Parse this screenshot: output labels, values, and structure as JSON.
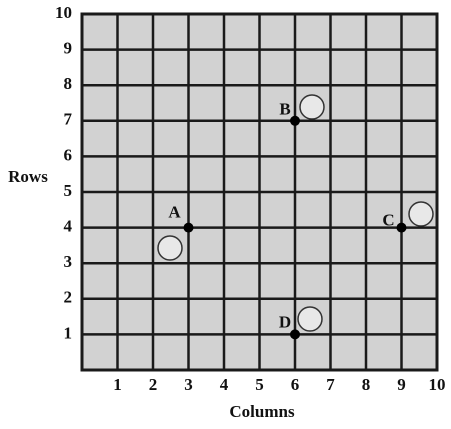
{
  "chart_data": {
    "type": "scatter",
    "x": [
      3,
      6,
      9,
      6
    ],
    "values": [
      4,
      7,
      4,
      1
    ],
    "labels": [
      "A",
      "B",
      "C",
      "D"
    ],
    "xlabel": "Columns",
    "ylabel": "Rows",
    "xlim": [
      0,
      10
    ],
    "ylim": [
      0,
      10
    ],
    "xticks": [
      1,
      2,
      3,
      4,
      5,
      6,
      7,
      8,
      9,
      10
    ],
    "yticks": [
      1,
      2,
      3,
      4,
      5,
      6,
      7,
      8,
      9,
      10
    ],
    "grid": true,
    "color": "#000000"
  }
}
